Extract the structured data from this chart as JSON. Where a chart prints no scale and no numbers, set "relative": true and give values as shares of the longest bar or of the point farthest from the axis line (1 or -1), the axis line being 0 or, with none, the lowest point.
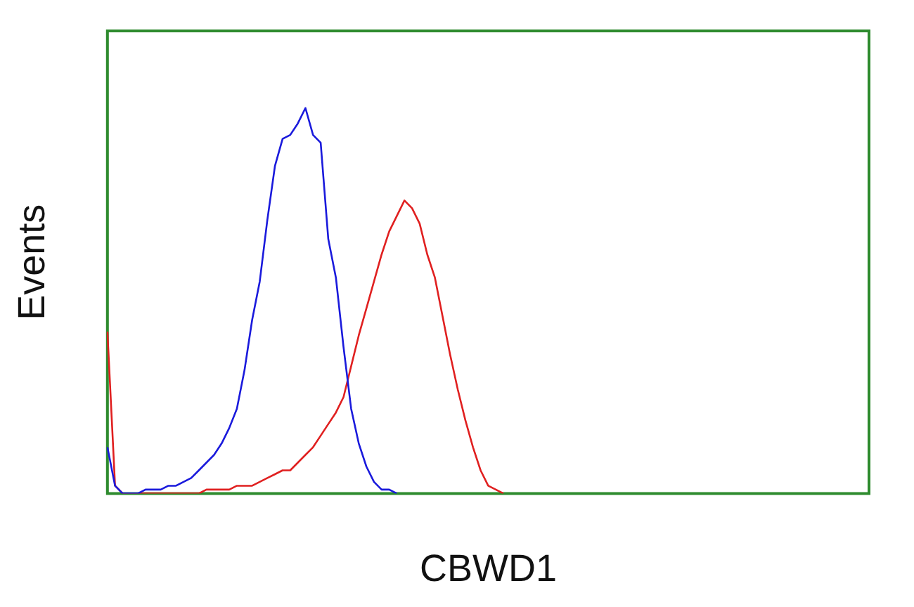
{
  "chart_data": {
    "type": "line",
    "relative": true,
    "xlabel": "CBWD1",
    "ylabel": "Events",
    "marker": "none",
    "legend": false,
    "grid": false,
    "categories": [
      null,
      null,
      null,
      null,
      null,
      null,
      null,
      null,
      null,
      null,
      null,
      null,
      null,
      null,
      null,
      null,
      null,
      null,
      null,
      null,
      null,
      null,
      null,
      null,
      null,
      null,
      null,
      null,
      null,
      null,
      null,
      null,
      null,
      null,
      null,
      null,
      null,
      null,
      null,
      null,
      null,
      null,
      null,
      null,
      null,
      null,
      null,
      null,
      null,
      null,
      null,
      null,
      null,
      null,
      null,
      null,
      null,
      null,
      null,
      null,
      null,
      null,
      null,
      null,
      null,
      null,
      null,
      null,
      null,
      null,
      null,
      null,
      null,
      null,
      null,
      null,
      null,
      null,
      null,
      null,
      null,
      null,
      null,
      null,
      null,
      null,
      null,
      null,
      null,
      null,
      null,
      null,
      null,
      null,
      null,
      null,
      null,
      null,
      null,
      null,
      null
    ],
    "series": [
      {
        "color": "#1a1adc",
        "values": [
          0.12,
          0.02,
          0,
          0,
          0,
          0.01,
          0.01,
          0.01,
          0.02,
          0.02,
          0.03,
          0.04,
          0.06,
          0.08,
          0.1,
          0.13,
          0.17,
          0.22,
          0.32,
          0.45,
          0.55,
          0.71,
          0.85,
          0.92,
          0.93,
          0.96,
          1,
          0.93,
          0.91,
          0.66,
          0.56,
          0.38,
          0.22,
          0.13,
          0.07,
          0.03,
          0.01,
          0.01,
          0,
          null,
          null,
          null,
          null,
          null,
          null,
          null,
          null,
          null,
          null,
          null,
          null,
          null,
          null,
          null,
          null,
          null,
          null,
          null,
          null,
          null,
          null,
          null,
          null,
          null,
          null,
          null,
          null,
          null,
          null,
          null,
          null,
          null,
          null,
          null,
          null,
          null,
          null,
          null,
          null,
          null,
          null,
          null,
          null,
          null,
          null,
          null,
          null,
          null,
          null,
          null,
          null,
          null,
          null,
          null,
          null,
          null,
          null,
          null,
          null,
          null,
          null
        ]
      },
      {
        "color": "#e02020",
        "values": [
          0.42,
          0.02,
          0,
          0,
          0,
          0,
          0,
          0,
          0,
          0,
          0,
          0,
          0,
          0.01,
          0.01,
          0.01,
          0.01,
          0.02,
          0.02,
          0.02,
          0.03,
          0.04,
          0.05,
          0.06,
          0.06,
          0.08,
          0.1,
          0.12,
          0.15,
          0.18,
          0.21,
          0.25,
          0.33,
          0.41,
          0.48,
          0.55,
          0.62,
          0.68,
          0.72,
          0.76,
          0.74,
          0.7,
          0.62,
          0.56,
          0.46,
          0.36,
          0.27,
          0.19,
          0.12,
          0.06,
          0.02,
          0.01,
          0,
          null,
          null,
          null,
          null,
          null,
          null,
          null,
          null,
          null,
          null,
          null,
          null,
          null,
          null,
          null,
          null,
          null,
          null,
          null,
          null,
          null,
          null,
          null,
          null,
          null,
          null,
          null,
          null,
          null,
          null,
          null,
          null,
          null,
          null,
          null,
          null,
          null,
          null,
          null,
          null,
          null,
          null,
          null,
          null,
          null,
          null,
          null,
          null
        ]
      }
    ]
  }
}
